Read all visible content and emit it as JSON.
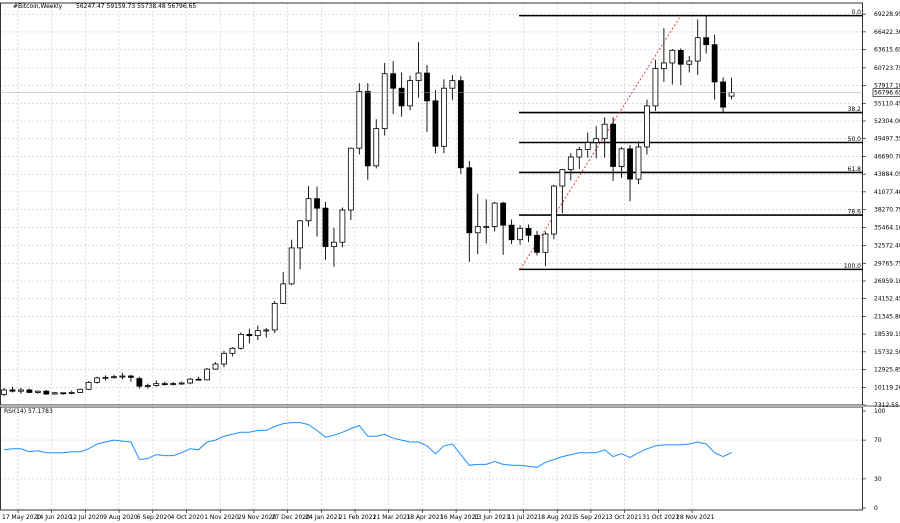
{
  "header": {
    "symbol": "#Bitcoin,Weekly",
    "ohlc": "56247.47 59159.73 55738.48 56796.65"
  },
  "rsi_panel": {
    "label": "RSI(14) 57.1783"
  },
  "chart_data": [
    {
      "type": "candlestick",
      "title": "",
      "ylim": [
        7312.55,
        71000
      ],
      "price_scale_labels": [
        "69228.95",
        "66422.30",
        "63615.65",
        "60723.75",
        "57917.10",
        "55110.45",
        "52304.00",
        "49497.35",
        "46690.70",
        "43884.05",
        "41077.40",
        "38270.75",
        "35464.10",
        "32572.40",
        "29765.75",
        "26959.10",
        "24152.45",
        "21345.80",
        "18539.15",
        "15732.50",
        "12925.85",
        "10119.20",
        "7312.55"
      ],
      "last_price": {
        "label": "56796.65",
        "value": 56796.65
      },
      "x_tick_labels": [
        "17 May 2020",
        "14 Jun 2020",
        "12 Jul 2020",
        "9 Aug 2020",
        "6 Sep 2020",
        "4 Oct 2020",
        "1 Nov 2020",
        "29 Nov 2020",
        "27 Dec 2020",
        "24 Jan 2021",
        "21 Feb 2021",
        "21 Mar 2021",
        "18 Apr 2021",
        "16 May 2021",
        "13 Jun 2021",
        "11 Jul 2021",
        "8 Aug 2021",
        "5 Sep 2021",
        "3 Oct 2021",
        "31 Oct 2021",
        "28 Nov 2021"
      ],
      "candles": [
        {
          "o": 9000,
          "h": 10000,
          "l": 8700,
          "c": 9700
        },
        {
          "o": 9700,
          "h": 10200,
          "l": 9300,
          "c": 9500
        },
        {
          "o": 9500,
          "h": 10000,
          "l": 9100,
          "c": 9700
        },
        {
          "o": 9700,
          "h": 9900,
          "l": 9200,
          "c": 9300
        },
        {
          "o": 9300,
          "h": 9600,
          "l": 9100,
          "c": 9500
        },
        {
          "o": 9500,
          "h": 9700,
          "l": 8900,
          "c": 9050
        },
        {
          "o": 9050,
          "h": 9400,
          "l": 8950,
          "c": 9250
        },
        {
          "o": 9250,
          "h": 9300,
          "l": 8950,
          "c": 9150
        },
        {
          "o": 9150,
          "h": 9600,
          "l": 9000,
          "c": 9300
        },
        {
          "o": 9300,
          "h": 9900,
          "l": 9200,
          "c": 9800
        },
        {
          "o": 9800,
          "h": 11100,
          "l": 9700,
          "c": 10900
        },
        {
          "o": 10900,
          "h": 11800,
          "l": 10700,
          "c": 11600
        },
        {
          "o": 11600,
          "h": 12000,
          "l": 11200,
          "c": 11700
        },
        {
          "o": 11700,
          "h": 12100,
          "l": 11500,
          "c": 11800
        },
        {
          "o": 11800,
          "h": 12400,
          "l": 11400,
          "c": 11900
        },
        {
          "o": 11900,
          "h": 12100,
          "l": 11000,
          "c": 11700
        },
        {
          "o": 11500,
          "h": 11800,
          "l": 9900,
          "c": 10300
        },
        {
          "o": 10300,
          "h": 10700,
          "l": 9900,
          "c": 10400
        },
        {
          "o": 10400,
          "h": 11200,
          "l": 10200,
          "c": 10700
        },
        {
          "o": 10700,
          "h": 11000,
          "l": 10400,
          "c": 10550
        },
        {
          "o": 10550,
          "h": 10950,
          "l": 10400,
          "c": 10700
        },
        {
          "o": 10700,
          "h": 11000,
          "l": 10500,
          "c": 10800
        },
        {
          "o": 10800,
          "h": 11600,
          "l": 10600,
          "c": 11400
        },
        {
          "o": 11400,
          "h": 11800,
          "l": 11200,
          "c": 11300
        },
        {
          "o": 11300,
          "h": 13200,
          "l": 11200,
          "c": 13000
        },
        {
          "o": 13000,
          "h": 14100,
          "l": 12900,
          "c": 13800
        },
        {
          "o": 13800,
          "h": 15900,
          "l": 13300,
          "c": 15500
        },
        {
          "o": 15500,
          "h": 16500,
          "l": 15000,
          "c": 16300
        },
        {
          "o": 16300,
          "h": 18800,
          "l": 16100,
          "c": 18500
        },
        {
          "o": 18500,
          "h": 19400,
          "l": 17100,
          "c": 18300
        },
        {
          "o": 18300,
          "h": 19900,
          "l": 17600,
          "c": 19100
        },
        {
          "o": 19100,
          "h": 19500,
          "l": 18000,
          "c": 19200
        },
        {
          "o": 19200,
          "h": 23800,
          "l": 18700,
          "c": 23400
        },
        {
          "o": 23400,
          "h": 28400,
          "l": 23300,
          "c": 26500
        },
        {
          "o": 26500,
          "h": 33500,
          "l": 26300,
          "c": 32200
        },
        {
          "o": 32200,
          "h": 36600,
          "l": 28800,
          "c": 36500
        },
        {
          "o": 36500,
          "h": 42000,
          "l": 35600,
          "c": 40000
        },
        {
          "o": 40000,
          "h": 41900,
          "l": 34000,
          "c": 38500
        },
        {
          "o": 38500,
          "h": 39500,
          "l": 30300,
          "c": 32400
        },
        {
          "o": 32400,
          "h": 35400,
          "l": 29200,
          "c": 33100
        },
        {
          "o": 33100,
          "h": 38600,
          "l": 32300,
          "c": 38200
        },
        {
          "o": 38200,
          "h": 48100,
          "l": 36600,
          "c": 48000
        },
        {
          "o": 48000,
          "h": 58300,
          "l": 47000,
          "c": 57000
        },
        {
          "o": 57000,
          "h": 58300,
          "l": 43000,
          "c": 45200
        },
        {
          "o": 45200,
          "h": 52600,
          "l": 44800,
          "c": 51100
        },
        {
          "o": 51100,
          "h": 61500,
          "l": 50000,
          "c": 59800
        },
        {
          "o": 59800,
          "h": 61800,
          "l": 53400,
          "c": 57500
        },
        {
          "o": 57500,
          "h": 60000,
          "l": 53000,
          "c": 54700
        },
        {
          "o": 54700,
          "h": 59500,
          "l": 54000,
          "c": 58700
        },
        {
          "o": 58700,
          "h": 64800,
          "l": 56000,
          "c": 59900
        },
        {
          "o": 59900,
          "h": 61200,
          "l": 50600,
          "c": 55500
        },
        {
          "o": 55500,
          "h": 57200,
          "l": 47200,
          "c": 48300
        },
        {
          "o": 48300,
          "h": 58900,
          "l": 47200,
          "c": 57500
        },
        {
          "o": 57500,
          "h": 59600,
          "l": 55600,
          "c": 58700
        },
        {
          "o": 58700,
          "h": 59400,
          "l": 43900,
          "c": 44900
        },
        {
          "o": 44900,
          "h": 46000,
          "l": 30000,
          "c": 34600
        },
        {
          "o": 34600,
          "h": 40800,
          "l": 31200,
          "c": 35600
        },
        {
          "o": 35600,
          "h": 39900,
          "l": 32900,
          "c": 35600
        },
        {
          "o": 35600,
          "h": 39500,
          "l": 34800,
          "c": 39300
        },
        {
          "o": 39300,
          "h": 39500,
          "l": 31100,
          "c": 35800
        },
        {
          "o": 35800,
          "h": 36700,
          "l": 32800,
          "c": 33500
        },
        {
          "o": 33500,
          "h": 35800,
          "l": 32700,
          "c": 35300
        },
        {
          "o": 35300,
          "h": 35900,
          "l": 33100,
          "c": 34200
        },
        {
          "o": 34200,
          "h": 34900,
          "l": 31000,
          "c": 31500
        },
        {
          "o": 31500,
          "h": 34800,
          "l": 29300,
          "c": 34400
        },
        {
          "o": 34400,
          "h": 42200,
          "l": 33600,
          "c": 42000
        },
        {
          "o": 42000,
          "h": 44700,
          "l": 37700,
          "c": 44600
        },
        {
          "o": 44600,
          "h": 47200,
          "l": 42900,
          "c": 46600
        },
        {
          "o": 46600,
          "h": 48200,
          "l": 44700,
          "c": 47800
        },
        {
          "o": 47800,
          "h": 50500,
          "l": 46500,
          "c": 48900
        },
        {
          "o": 48900,
          "h": 51500,
          "l": 46400,
          "c": 49500
        },
        {
          "o": 49500,
          "h": 52900,
          "l": 46500,
          "c": 51800
        },
        {
          "o": 51800,
          "h": 52900,
          "l": 42800,
          "c": 45100
        },
        {
          "o": 45100,
          "h": 48200,
          "l": 43300,
          "c": 47900
        },
        {
          "o": 47900,
          "h": 48500,
          "l": 39600,
          "c": 43100
        },
        {
          "o": 43100,
          "h": 49100,
          "l": 42300,
          "c": 48200
        },
        {
          "o": 48200,
          "h": 55700,
          "l": 47000,
          "c": 54700
        },
        {
          "o": 54700,
          "h": 62000,
          "l": 53900,
          "c": 60600
        },
        {
          "o": 60600,
          "h": 67000,
          "l": 58500,
          "c": 61500
        },
        {
          "o": 61500,
          "h": 63700,
          "l": 58100,
          "c": 63500
        },
        {
          "o": 63500,
          "h": 63800,
          "l": 58000,
          "c": 61300
        },
        {
          "o": 61300,
          "h": 62600,
          "l": 60000,
          "c": 61800
        },
        {
          "o": 61800,
          "h": 68400,
          "l": 59600,
          "c": 65500
        },
        {
          "o": 65500,
          "h": 69000,
          "l": 63000,
          "c": 64400
        },
        {
          "o": 64400,
          "h": 66000,
          "l": 55700,
          "c": 58500
        },
        {
          "o": 58500,
          "h": 59200,
          "l": 53500,
          "c": 54500
        },
        {
          "o": 56247.47,
          "h": 59159.73,
          "l": 55738.48,
          "c": 56796.65
        }
      ],
      "fibonacci": {
        "low": 28800,
        "high": 69000,
        "start_index": 61,
        "levels": [
          {
            "label": "0.0",
            "ratio": 0.0
          },
          {
            "label": "38.2",
            "ratio": 0.382
          },
          {
            "label": "50.0",
            "ratio": 0.5
          },
          {
            "label": "61.8",
            "ratio": 0.618
          },
          {
            "label": "78.6",
            "ratio": 0.786
          },
          {
            "label": "100.0",
            "ratio": 1.0
          }
        ],
        "trend_line": {
          "from_index": 61,
          "from_value": 28800,
          "to_index": 80,
          "to_value": 69000
        }
      }
    },
    {
      "type": "line",
      "title": "RSI(14) 57.1783",
      "ylim": [
        0,
        100
      ],
      "y_tick_labels": [
        "100",
        "70",
        "30",
        "0"
      ],
      "y_ticks": [
        100,
        70,
        30,
        0
      ],
      "color": "#1e90ff",
      "series": [
        {
          "name": "RSI(14)",
          "values": [
            60,
            61,
            61,
            58,
            59,
            57,
            57,
            57,
            58,
            58,
            61,
            66,
            68,
            70,
            69,
            68,
            50,
            51,
            55,
            54,
            54,
            57,
            61,
            60,
            68,
            70,
            74,
            76,
            78,
            78,
            80,
            80,
            84,
            87,
            88,
            88,
            86,
            80,
            73,
            75,
            78,
            82,
            85,
            74,
            74,
            76,
            72,
            70,
            68,
            68,
            64,
            56,
            64,
            66,
            55,
            44,
            45,
            45,
            48,
            45,
            44,
            44,
            43,
            42,
            47,
            50,
            53,
            55,
            57,
            57,
            57,
            60,
            53,
            56,
            52,
            57,
            61,
            64,
            65,
            65,
            65,
            66,
            68,
            66,
            57,
            53,
            57.18
          ]
        }
      ]
    }
  ]
}
